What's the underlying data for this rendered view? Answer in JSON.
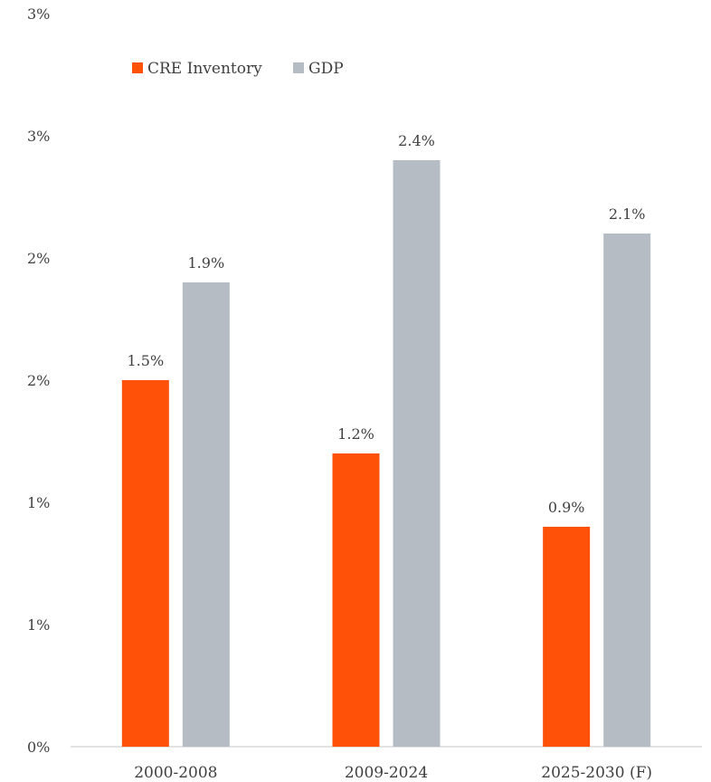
{
  "chart_data": {
    "type": "bar",
    "title": "",
    "xlabel": "",
    "ylabel": "",
    "categories": [
      "2000-2008",
      "2009-2024",
      "2025-2030 (F)"
    ],
    "series": [
      {
        "name": "CRE Inventory",
        "color": "#FF5208",
        "values": [
          1.5,
          1.2,
          0.9
        ],
        "labels": [
          "1.5%",
          "1.2%",
          "0.9%"
        ]
      },
      {
        "name": "GDP",
        "color": "#B5BCC4",
        "values": [
          1.9,
          2.4,
          2.1
        ],
        "labels": [
          "1.9%",
          "2.4%",
          "2.1%"
        ]
      }
    ],
    "ylim": [
      0,
      3.0
    ],
    "yticks": [
      0,
      0.5,
      1.0,
      1.5,
      2.0,
      2.5,
      3.0
    ],
    "ytick_labels": [
      "0%",
      "1%",
      "1%",
      "2%",
      "2%",
      "3%",
      "3%"
    ],
    "grid": false,
    "legend_position": "top-left"
  }
}
